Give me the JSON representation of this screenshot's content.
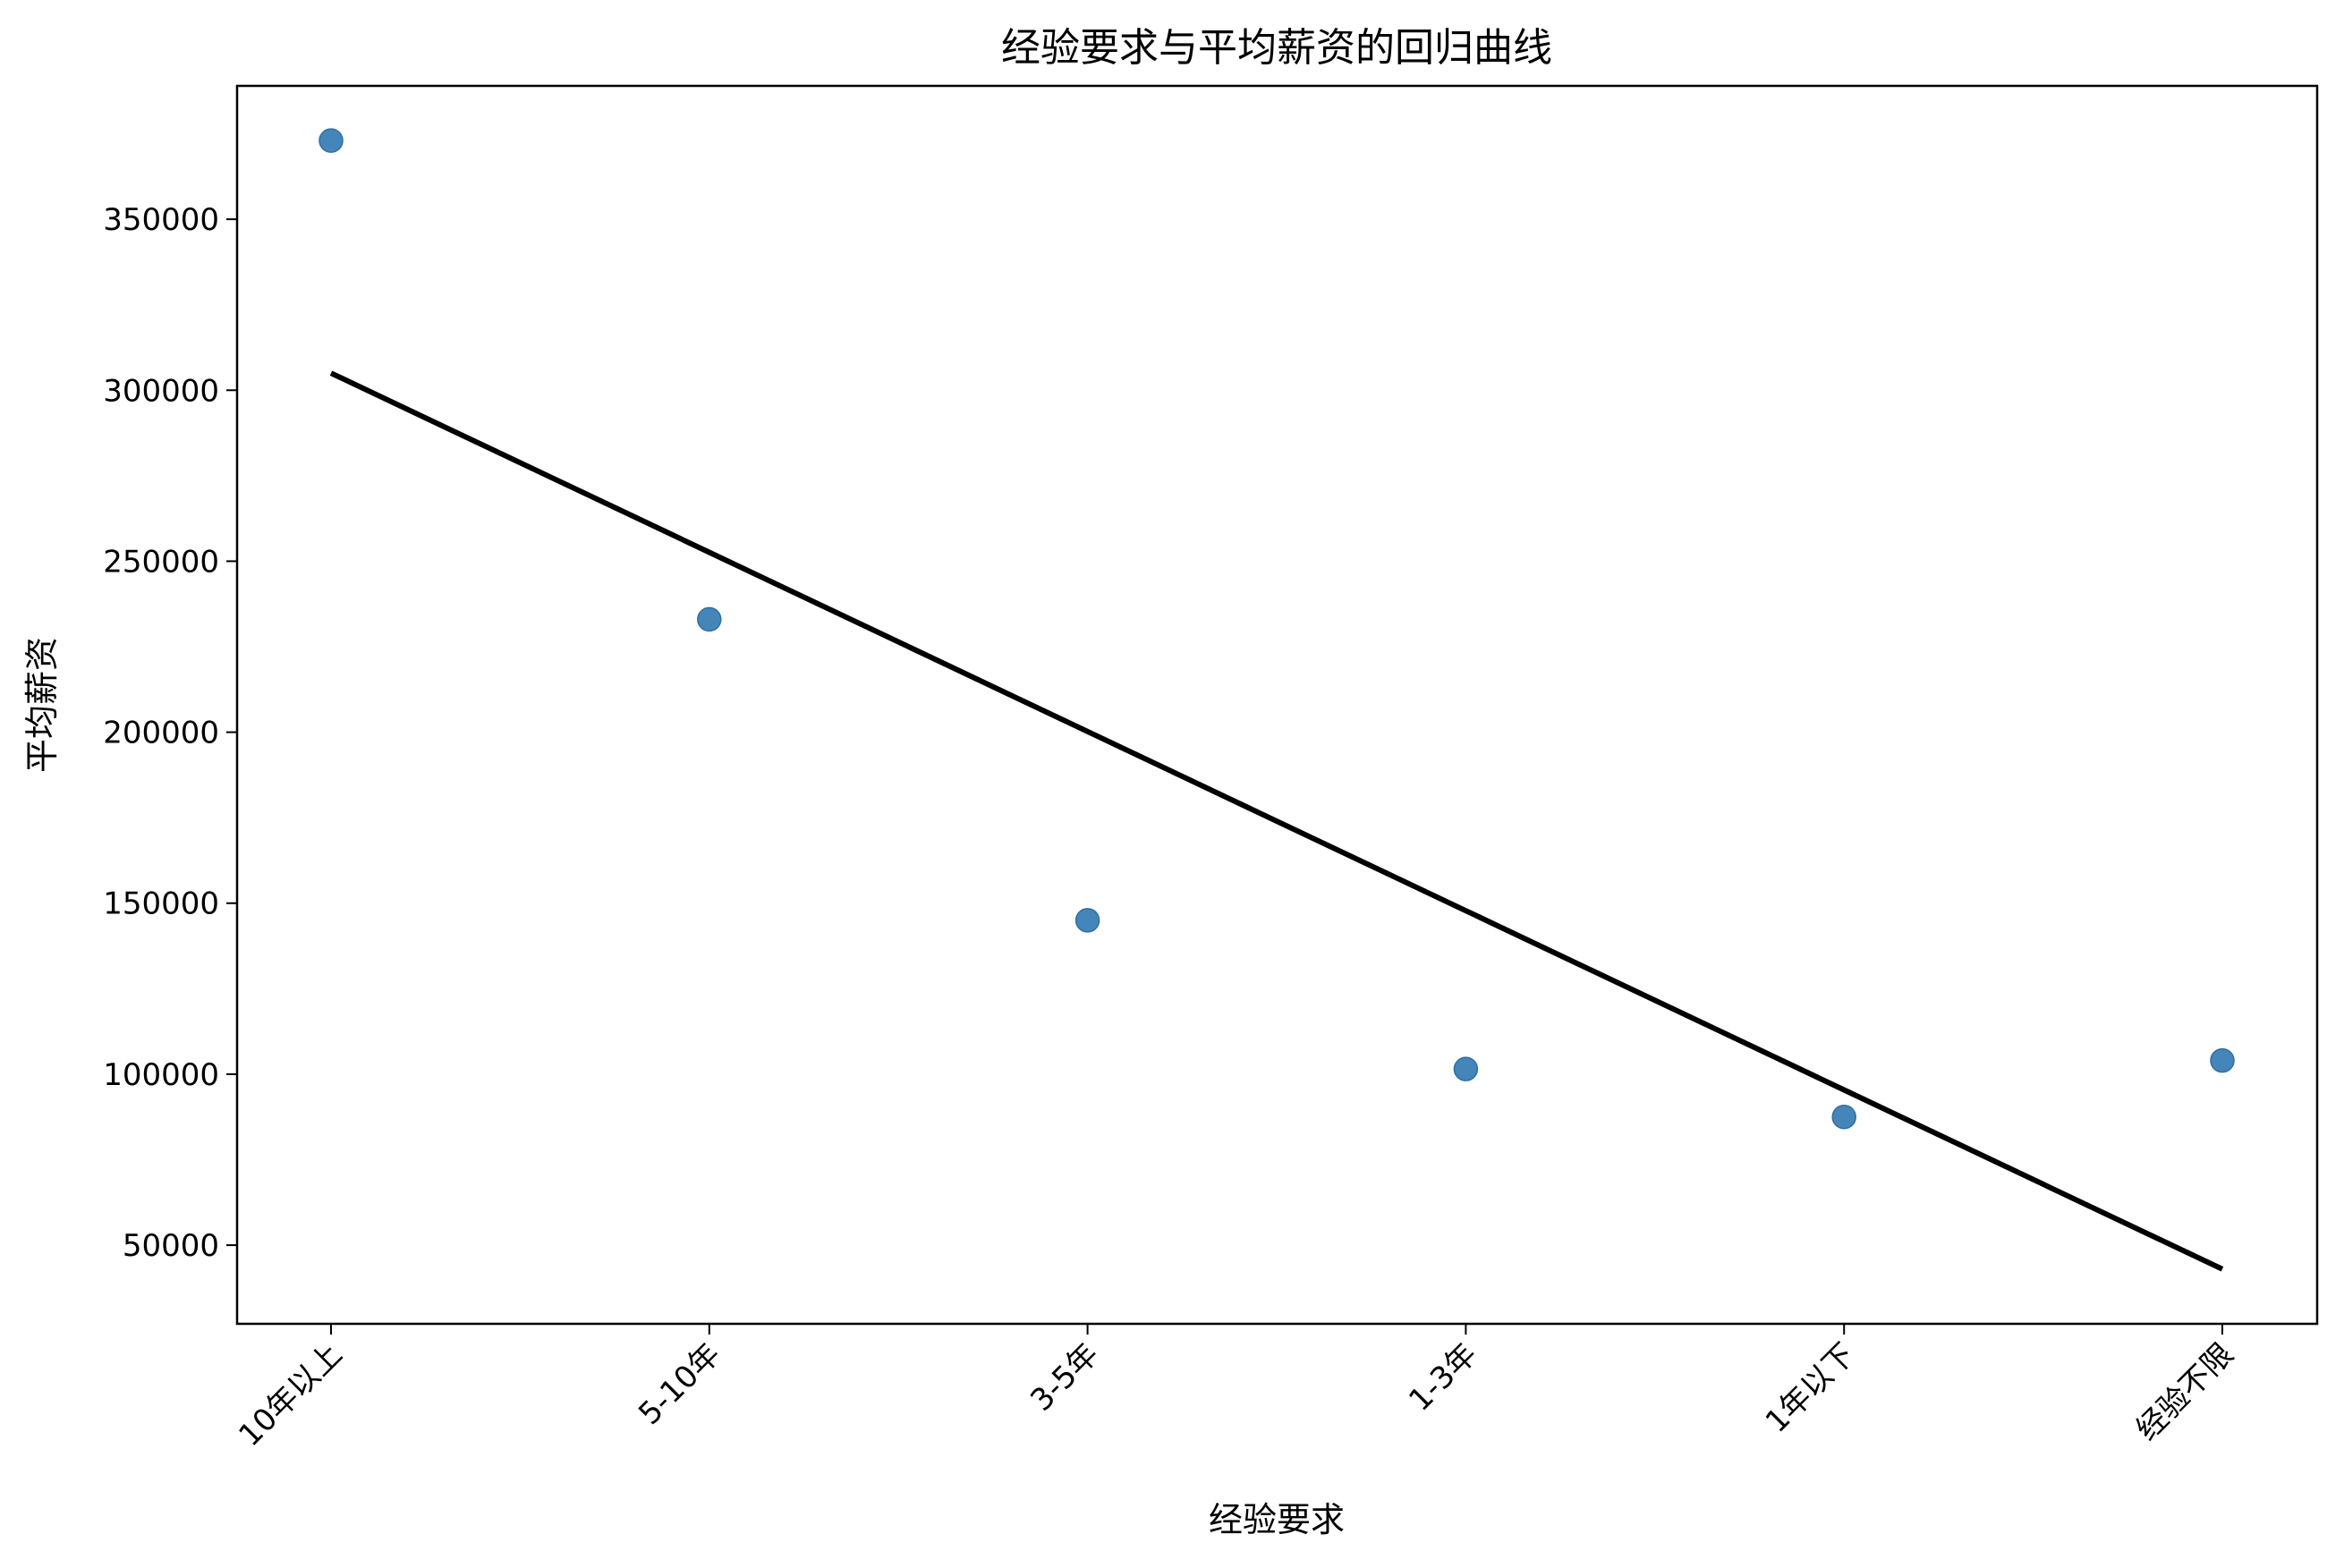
{
  "chart_data": {
    "type": "scatter",
    "title": "经验要求与平均薪资的回归曲线",
    "xlabel": "经验要求",
    "ylabel": "平均薪资",
    "categories": [
      "10年以上",
      "5-10年",
      "3-5年",
      "1-3年",
      "1年以下",
      "经验不限"
    ],
    "series": [
      {
        "type": "scatter",
        "values": [
          373000,
          233000,
          145000,
          101500,
          87500,
          104000
        ],
        "color": "#3a7fb6"
      },
      {
        "type": "line",
        "values": [
          305000,
          252600,
          200200,
          147800,
          95400,
          43000
        ],
        "color": "#000000"
      }
    ],
    "yticks": [
      50000,
      100000,
      150000,
      200000,
      250000,
      300000,
      350000
    ],
    "yticklabels": [
      "50000",
      "100000",
      "150000",
      "200000",
      "250000",
      "300000",
      "350000"
    ],
    "ylim": [
      27000,
      389000
    ],
    "grid": false
  }
}
